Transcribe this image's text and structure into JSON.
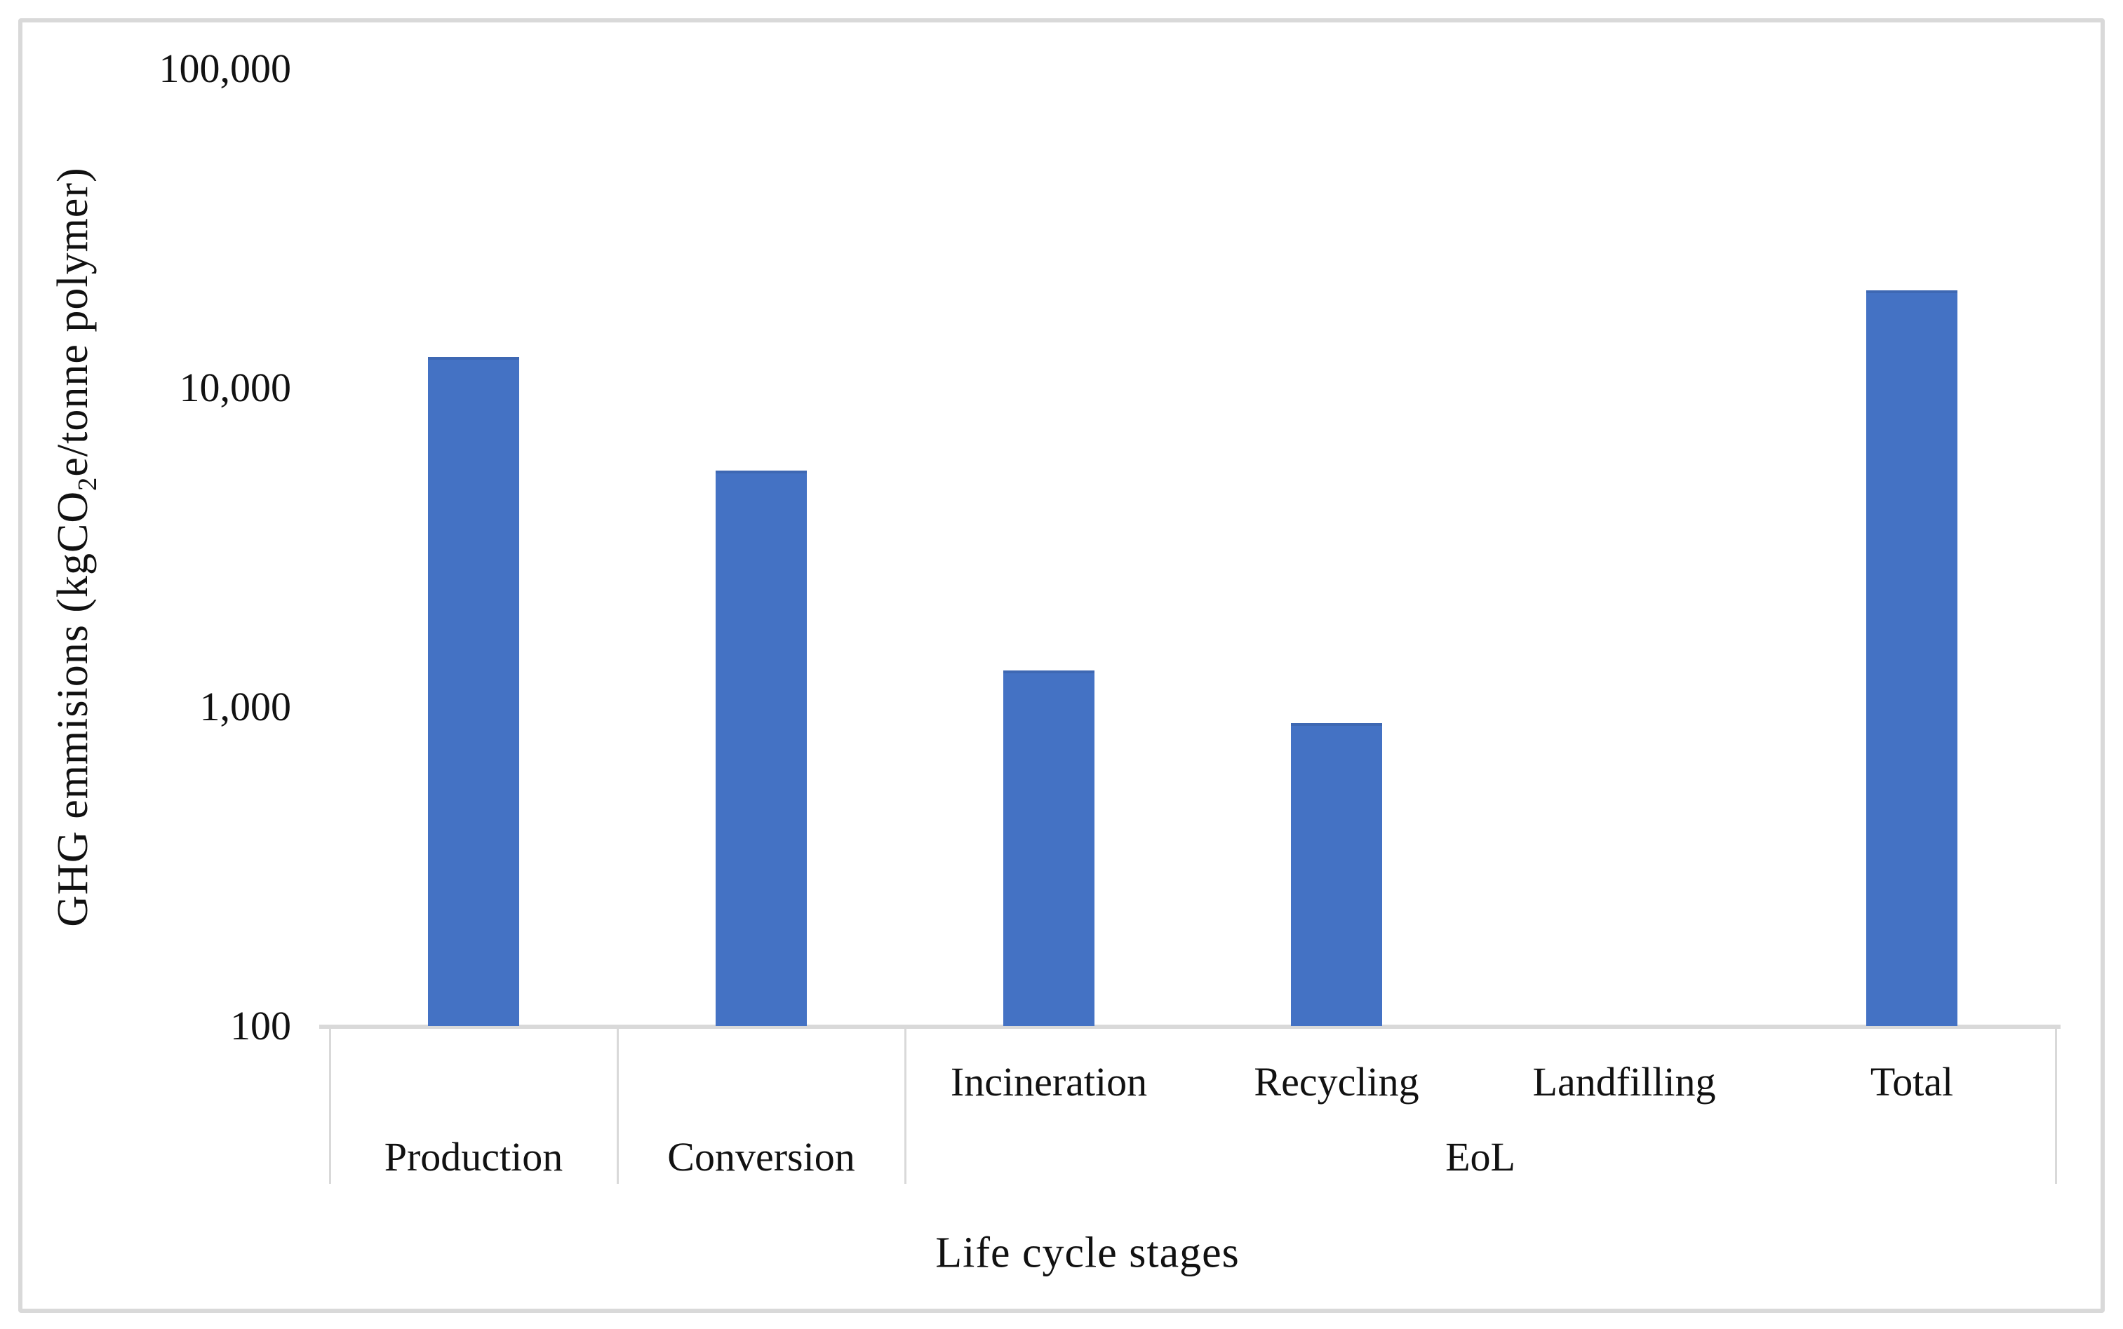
{
  "figure": {
    "background": "#FFFFFF",
    "border_color": "#D9D9D9"
  },
  "chart_data": {
    "type": "bar",
    "title": "",
    "xlabel": "Life cycle stages",
    "ylabel": "GHG emmisions (kgCO2e/tonne polymer)",
    "ylabel_parts": {
      "pre": "GHG emmisions (kgCO",
      "sub": "2",
      "post": "e/tonne polymer)"
    },
    "y_scale": "log",
    "ylim": [
      100,
      100000
    ],
    "y_ticks": [
      {
        "value": 100000,
        "label": "100,000"
      },
      {
        "value": 10000,
        "label": "10,000"
      },
      {
        "value": 1000,
        "label": "1,000"
      },
      {
        "value": 100,
        "label": "100"
      }
    ],
    "categories": [
      "Production",
      "Conversion",
      "Incineration",
      "Recycling",
      "Landfilling",
      "Total"
    ],
    "axis_rows": {
      "top": [
        "Incineration",
        "Recycling",
        "Landfilling",
        "Total"
      ],
      "bottom": [
        "Production",
        "Conversion",
        "EoL"
      ]
    },
    "category_groups": [
      {
        "label": "EoL",
        "members": [
          "Incineration",
          "Recycling",
          "Landfilling"
        ]
      }
    ],
    "series": [
      {
        "name": "GHG emissions",
        "color": "#4472C4",
        "values": [
          12500,
          5500,
          1300,
          890,
          null,
          20200
        ]
      }
    ],
    "grid": false,
    "legend": false,
    "bar_color": "#4472C4",
    "axis_line_color": "#D9D9D9"
  }
}
